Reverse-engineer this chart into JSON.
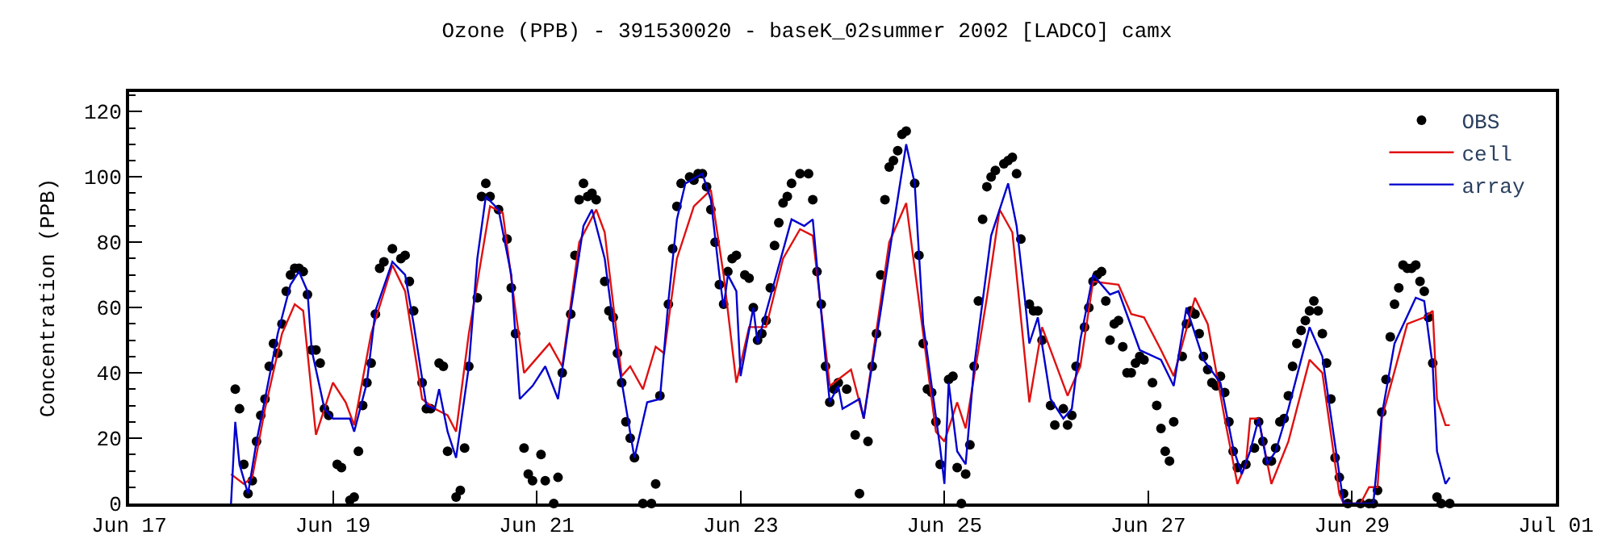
{
  "chart_data": {
    "type": "line",
    "title": "Ozone (PPB) - 391530020 - baseK_02summer 2002 [LADCO] camx",
    "ylabel": "Concentration (PPB)",
    "xlim": [
      "2002-06-17",
      "2002-07-01"
    ],
    "ylim": [
      0,
      126
    ],
    "xticks": [
      {
        "value": "2002-06-17",
        "label": "Jun 17"
      },
      {
        "value": "2002-06-19",
        "label": "Jun 19"
      },
      {
        "value": "2002-06-21",
        "label": "Jun 21"
      },
      {
        "value": "2002-06-23",
        "label": "Jun 23"
      },
      {
        "value": "2002-06-25",
        "label": "Jun 25"
      },
      {
        "value": "2002-06-27",
        "label": "Jun 27"
      },
      {
        "value": "2002-06-29",
        "label": "Jun 29"
      },
      {
        "value": "2002-07-01",
        "label": "Jul 01"
      }
    ],
    "yticks": [
      0,
      20,
      40,
      60,
      80,
      100,
      120
    ],
    "legend": "top right",
    "series": [
      {
        "name": "OBS",
        "type": "scatter",
        "marker": "circle",
        "color": "#000000",
        "x": [
          "2002-06-18T01:00",
          "2002-06-18T02:00",
          "2002-06-18T03:00",
          "2002-06-18T04:00",
          "2002-06-18T05:00",
          "2002-06-18T06:00",
          "2002-06-18T07:00",
          "2002-06-18T08:00",
          "2002-06-18T09:00",
          "2002-06-18T10:00",
          "2002-06-18T11:00",
          "2002-06-18T12:00",
          "2002-06-18T13:00",
          "2002-06-18T14:00",
          "2002-06-18T15:00",
          "2002-06-18T16:00",
          "2002-06-18T17:00",
          "2002-06-18T18:00",
          "2002-06-18T19:00",
          "2002-06-18T20:00",
          "2002-06-18T21:00",
          "2002-06-18T22:00",
          "2002-06-18T23:00",
          "2002-06-19T01:00",
          "2002-06-19T02:00",
          "2002-06-19T04:00",
          "2002-06-19T05:00",
          "2002-06-19T06:00",
          "2002-06-19T07:00",
          "2002-06-19T08:00",
          "2002-06-19T09:00",
          "2002-06-19T10:00",
          "2002-06-19T11:00",
          "2002-06-19T12:00",
          "2002-06-19T14:00",
          "2002-06-19T16:00",
          "2002-06-19T17:00",
          "2002-06-19T18:00",
          "2002-06-19T19:00",
          "2002-06-19T21:00",
          "2002-06-19T22:00",
          "2002-06-19T23:00",
          "2002-06-20T01:00",
          "2002-06-20T02:00",
          "2002-06-20T03:00",
          "2002-06-20T05:00",
          "2002-06-20T06:00",
          "2002-06-20T07:00",
          "2002-06-20T08:00",
          "2002-06-20T10:00",
          "2002-06-20T11:00",
          "2002-06-20T12:00",
          "2002-06-20T13:00",
          "2002-06-20T15:00",
          "2002-06-20T17:00",
          "2002-06-20T18:00",
          "2002-06-20T19:00",
          "2002-06-20T21:00",
          "2002-06-20T22:00",
          "2002-06-20T23:00",
          "2002-06-21T01:00",
          "2002-06-21T02:00",
          "2002-06-21T04:00",
          "2002-06-21T05:00",
          "2002-06-21T06:00",
          "2002-06-21T08:00",
          "2002-06-21T09:00",
          "2002-06-21T10:00",
          "2002-06-21T11:00",
          "2002-06-21T12:00",
          "2002-06-21T13:00",
          "2002-06-21T14:00",
          "2002-06-21T16:00",
          "2002-06-21T17:00",
          "2002-06-21T18:00",
          "2002-06-21T19:00",
          "2002-06-21T20:00",
          "2002-06-21T21:00",
          "2002-06-21T22:00",
          "2002-06-21T23:00",
          "2002-06-22T01:00",
          "2002-06-22T03:00",
          "2002-06-22T04:00",
          "2002-06-22T05:00",
          "2002-06-22T07:00",
          "2002-06-22T08:00",
          "2002-06-22T09:00",
          "2002-06-22T10:00",
          "2002-06-22T12:00",
          "2002-06-22T13:00",
          "2002-06-22T14:00",
          "2002-06-22T15:00",
          "2002-06-22T16:00",
          "2002-06-22T17:00",
          "2002-06-22T18:00",
          "2002-06-22T19:00",
          "2002-06-22T20:00",
          "2002-06-22T21:00",
          "2002-06-22T22:00",
          "2002-06-22T23:00",
          "2002-06-23T01:00",
          "2002-06-23T02:00",
          "2002-06-23T03:00",
          "2002-06-23T04:00",
          "2002-06-23T05:00",
          "2002-06-23T06:00",
          "2002-06-23T07:00",
          "2002-06-23T08:00",
          "2002-06-23T09:00",
          "2002-06-23T10:00",
          "2002-06-23T11:00",
          "2002-06-23T12:00",
          "2002-06-23T14:00",
          "2002-06-23T16:00",
          "2002-06-23T17:00",
          "2002-06-23T18:00",
          "2002-06-23T19:00",
          "2002-06-23T20:00",
          "2002-06-23T21:00",
          "2002-06-23T22:00",
          "2002-06-23T23:00",
          "2002-06-24T01:00",
          "2002-06-24T03:00",
          "2002-06-24T04:00",
          "2002-06-24T06:00",
          "2002-06-24T07:00",
          "2002-06-24T08:00",
          "2002-06-24T09:00",
          "2002-06-24T10:00",
          "2002-06-24T11:00",
          "2002-06-24T12:00",
          "2002-06-24T13:00",
          "2002-06-24T14:00",
          "2002-06-24T15:00",
          "2002-06-24T17:00",
          "2002-06-24T18:00",
          "2002-06-24T19:00",
          "2002-06-24T20:00",
          "2002-06-24T21:00",
          "2002-06-24T22:00",
          "2002-06-24T23:00",
          "2002-06-25T01:00",
          "2002-06-25T02:00",
          "2002-06-25T03:00",
          "2002-06-25T04:00",
          "2002-06-25T05:00",
          "2002-06-25T06:00",
          "2002-06-25T07:00",
          "2002-06-25T08:00",
          "2002-06-25T09:00",
          "2002-06-25T10:00",
          "2002-06-25T11:00",
          "2002-06-25T12:00",
          "2002-06-25T14:00",
          "2002-06-25T15:00",
          "2002-06-25T16:00",
          "2002-06-25T17:00",
          "2002-06-25T18:00",
          "2002-06-25T20:00",
          "2002-06-25T21:00",
          "2002-06-25T22:00",
          "2002-06-25T23:00",
          "2002-06-26T01:00",
          "2002-06-26T02:00",
          "2002-06-26T04:00",
          "2002-06-26T05:00",
          "2002-06-26T06:00",
          "2002-06-26T07:00",
          "2002-06-26T09:00",
          "2002-06-26T10:00",
          "2002-06-26T11:00",
          "2002-06-26T12:00",
          "2002-06-26T13:00",
          "2002-06-26T14:00",
          "2002-06-26T15:00",
          "2002-06-26T16:00",
          "2002-06-26T17:00",
          "2002-06-26T18:00",
          "2002-06-26T19:00",
          "2002-06-26T20:00",
          "2002-06-26T21:00",
          "2002-06-26T22:00",
          "2002-06-26T23:00",
          "2002-06-27T01:00",
          "2002-06-27T02:00",
          "2002-06-27T03:00",
          "2002-06-27T04:00",
          "2002-06-27T05:00",
          "2002-06-27T06:00",
          "2002-06-27T08:00",
          "2002-06-27T09:00",
          "2002-06-27T10:00",
          "2002-06-27T11:00",
          "2002-06-27T12:00",
          "2002-06-27T13:00",
          "2002-06-27T14:00",
          "2002-06-27T15:00",
          "2002-06-27T16:00",
          "2002-06-27T17:00",
          "2002-06-27T18:00",
          "2002-06-27T19:00",
          "2002-06-27T20:00",
          "2002-06-27T21:00",
          "2002-06-27T23:00",
          "2002-06-28T01:00",
          "2002-06-28T02:00",
          "2002-06-28T03:00",
          "2002-06-28T04:00",
          "2002-06-28T05:00",
          "2002-06-28T06:00",
          "2002-06-28T07:00",
          "2002-06-28T08:00",
          "2002-06-28T09:00",
          "2002-06-28T10:00",
          "2002-06-28T11:00",
          "2002-06-28T12:00",
          "2002-06-28T13:00",
          "2002-06-28T14:00",
          "2002-06-28T15:00",
          "2002-06-28T16:00",
          "2002-06-28T17:00",
          "2002-06-28T18:00",
          "2002-06-28T19:00",
          "2002-06-28T20:00",
          "2002-06-28T21:00",
          "2002-06-28T22:00",
          "2002-06-28T23:00",
          "2002-06-29T02:00",
          "2002-06-29T04:00",
          "2002-06-29T05:00",
          "2002-06-29T06:00",
          "2002-06-29T07:00",
          "2002-06-29T08:00",
          "2002-06-29T09:00",
          "2002-06-29T10:00",
          "2002-06-29T11:00",
          "2002-06-29T12:00",
          "2002-06-29T13:00",
          "2002-06-29T14:00",
          "2002-06-29T15:00",
          "2002-06-29T16:00",
          "2002-06-29T17:00",
          "2002-06-29T18:00",
          "2002-06-29T19:00",
          "2002-06-29T20:00",
          "2002-06-29T21:00",
          "2002-06-29T23:00"
        ],
        "values": [
          35,
          29,
          12,
          3,
          7,
          19,
          27,
          32,
          42,
          49,
          46,
          55,
          65,
          70,
          72,
          72,
          71,
          64,
          47,
          47,
          43,
          29,
          27,
          12,
          11,
          1,
          2,
          16,
          30,
          37,
          43,
          58,
          72,
          74,
          78,
          75,
          76,
          68,
          59,
          37,
          29,
          29,
          43,
          42,
          16,
          2,
          4,
          17,
          42,
          63,
          94,
          98,
          94,
          90,
          81,
          66,
          52,
          17,
          9,
          7,
          15,
          7,
          0,
          8,
          40,
          58,
          76,
          93,
          98,
          94,
          95,
          93,
          68,
          59,
          57,
          46,
          37,
          25,
          20,
          14,
          0,
          0,
          6,
          33,
          61,
          78,
          91,
          98,
          100,
          99,
          101,
          101,
          97,
          90,
          80,
          67,
          61,
          71,
          75,
          76,
          70,
          69,
          60,
          50,
          52,
          56,
          66,
          79,
          86,
          92,
          94,
          98,
          101,
          101,
          93,
          71,
          61,
          42,
          31,
          35,
          37,
          35,
          21,
          3,
          19,
          42,
          52,
          70,
          93,
          103,
          105,
          108,
          113,
          114,
          98,
          76,
          49,
          35,
          34,
          25,
          12,
          38,
          39,
          11,
          0,
          9,
          18,
          42,
          62,
          87,
          97,
          100,
          102,
          104,
          105,
          106,
          101,
          81,
          61,
          59,
          59,
          50,
          30,
          24,
          29,
          24,
          27,
          42,
          54,
          60,
          68,
          70,
          71,
          62,
          50,
          55,
          56,
          48,
          40,
          40,
          43,
          45,
          44,
          37,
          30,
          23,
          16,
          13,
          25,
          45,
          55,
          59,
          58,
          52,
          45,
          41,
          37,
          36,
          39,
          34,
          25,
          16,
          11,
          12,
          17,
          25,
          19,
          13,
          13,
          17,
          25,
          26,
          33,
          42,
          49,
          53,
          56,
          59,
          62,
          59,
          52,
          43,
          32,
          14,
          8,
          3,
          0,
          0,
          0,
          0,
          4,
          28,
          38,
          51,
          61,
          66,
          73,
          72,
          72,
          73,
          68,
          65,
          57,
          43,
          2,
          0,
          0
        ]
      },
      {
        "name": "cell",
        "color": "#e01010",
        "line_style": "solid",
        "x": [
          "2002-06-18T00:00",
          "2002-06-18T03:00",
          "2002-06-18T05:00",
          "2002-06-18T08:00",
          "2002-06-18T12:00",
          "2002-06-18T15:00",
          "2002-06-18T17:00",
          "2002-06-18T20:00",
          "2002-06-19T00:00",
          "2002-06-19T03:00",
          "2002-06-19T05:00",
          "2002-06-19T09:00",
          "2002-06-19T14:00",
          "2002-06-19T17:00",
          "2002-06-19T21:00",
          "2002-06-20T00:00",
          "2002-06-20T03:00",
          "2002-06-20T05:00",
          "2002-06-20T08:00",
          "2002-06-20T13:00",
          "2002-06-20T16:00",
          "2002-06-20T19:00",
          "2002-06-20T21:00",
          "2002-06-21T03:00",
          "2002-06-21T06:00",
          "2002-06-21T10:00",
          "2002-06-21T14:00",
          "2002-06-21T16:00",
          "2002-06-21T20:00",
          "2002-06-21T22:00",
          "2002-06-22T01:00",
          "2002-06-22T04:00",
          "2002-06-22T06:00",
          "2002-06-22T09:00",
          "2002-06-22T13:00",
          "2002-06-22T17:00",
          "2002-06-22T20:00",
          "2002-06-22T23:00",
          "2002-06-23T02:00",
          "2002-06-23T06:00",
          "2002-06-23T10:00",
          "2002-06-23T14:00",
          "2002-06-23T17:00",
          "2002-06-23T21:00",
          "2002-06-24T02:00",
          "2002-06-24T05:00",
          "2002-06-24T11:00",
          "2002-06-24T15:00",
          "2002-06-24T19:00",
          "2002-06-24T22:00",
          "2002-06-25T00:00",
          "2002-06-25T03:00",
          "2002-06-25T05:00",
          "2002-06-25T10:00",
          "2002-06-25T13:00",
          "2002-06-25T16:00",
          "2002-06-25T20:00",
          "2002-06-25T23:00",
          "2002-06-26T05:00",
          "2002-06-26T08:00",
          "2002-06-26T11:00",
          "2002-06-26T17:00",
          "2002-06-26T20:00",
          "2002-06-26T23:00",
          "2002-06-27T03:00",
          "2002-06-27T06:00",
          "2002-06-27T11:00",
          "2002-06-27T14:00",
          "2002-06-27T18:00",
          "2002-06-27T21:00",
          "2002-06-27T23:00",
          "2002-06-28T00:00",
          "2002-06-28T02:00",
          "2002-06-28T05:00",
          "2002-06-28T09:00",
          "2002-06-28T14:00",
          "2002-06-28T17:00",
          "2002-06-28T21:00",
          "2002-06-28T22:00",
          "2002-06-29T02:00",
          "2002-06-29T04:00",
          "2002-06-29T06:00",
          "2002-06-29T07:00",
          "2002-06-29T13:00",
          "2002-06-29T17:00",
          "2002-06-29T19:00",
          "2002-06-29T20:00",
          "2002-06-29T22:00",
          "2002-06-29T23:00"
        ],
        "values": [
          9,
          6,
          8,
          29,
          52,
          61,
          59,
          21,
          37,
          31,
          24,
          52,
          73,
          65,
          32,
          29,
          27,
          22,
          52,
          91,
          89,
          59,
          40,
          49,
          42,
          80,
          90,
          83,
          39,
          42,
          35,
          48,
          46,
          75,
          91,
          96,
          70,
          37,
          54,
          54,
          75,
          84,
          82,
          36,
          41,
          26,
          80,
          92,
          52,
          22,
          19,
          31,
          23,
          63,
          90,
          83,
          31,
          54,
          33,
          42,
          68,
          67,
          58,
          57,
          47,
          39,
          63,
          55,
          26,
          6,
          12,
          26,
          26,
          6,
          19,
          44,
          40,
          3,
          0,
          0,
          5,
          5,
          26,
          55,
          57,
          59,
          32,
          24,
          24
        ]
      },
      {
        "name": "array",
        "color": "#0000cc",
        "line_style": "solid",
        "x": [
          "2002-06-18T00:00",
          "2002-06-18T01:00",
          "2002-06-18T02:00",
          "2002-06-18T04:00",
          "2002-06-18T06:00",
          "2002-06-18T08:00",
          "2002-06-18T11:00",
          "2002-06-18T14:00",
          "2002-06-18T16:00",
          "2002-06-18T18:00",
          "2002-06-18T19:00",
          "2002-06-18T22:00",
          "2002-06-19T00:00",
          "2002-06-19T04:00",
          "2002-06-19T05:00",
          "2002-06-19T08:00",
          "2002-06-19T10:00",
          "2002-06-19T14:00",
          "2002-06-19T17:00",
          "2002-06-19T19:00",
          "2002-06-19T22:00",
          "2002-06-20T00:00",
          "2002-06-20T01:00",
          "2002-06-20T03:00",
          "2002-06-20T05:00",
          "2002-06-20T08:00",
          "2002-06-20T10:00",
          "2002-06-20T12:00",
          "2002-06-20T15:00",
          "2002-06-20T18:00",
          "2002-06-20T20:00",
          "2002-06-20T23:00",
          "2002-06-21T02:00",
          "2002-06-21T05:00",
          "2002-06-21T08:00",
          "2002-06-21T11:00",
          "2002-06-21T13:00",
          "2002-06-21T16:00",
          "2002-06-21T19:00",
          "2002-06-21T23:00",
          "2002-06-22T02:00",
          "2002-06-22T05:00",
          "2002-06-22T07:00",
          "2002-06-22T09:00",
          "2002-06-22T11:00",
          "2002-06-22T15:00",
          "2002-06-22T17:00",
          "2002-06-22T19:00",
          "2002-06-22T20:00",
          "2002-06-22T21:00",
          "2002-06-22T23:00",
          "2002-06-23T00:00",
          "2002-06-23T03:00",
          "2002-06-23T04:00",
          "2002-06-23T08:00",
          "2002-06-23T12:00",
          "2002-06-23T15:00",
          "2002-06-23T17:00",
          "2002-06-23T20:00",
          "2002-06-23T21:00",
          "2002-06-23T23:00",
          "2002-06-24T00:00",
          "2002-06-24T04:00",
          "2002-06-24T05:00",
          "2002-06-24T09:00",
          "2002-06-24T12:00",
          "2002-06-24T15:00",
          "2002-06-24T17:00",
          "2002-06-24T19:00",
          "2002-06-24T21:00",
          "2002-06-24T23:00",
          "2002-06-25T00:00",
          "2002-06-25T01:00",
          "2002-06-25T03:00",
          "2002-06-25T05:00",
          "2002-06-25T07:00",
          "2002-06-25T11:00",
          "2002-06-25T15:00",
          "2002-06-25T17:00",
          "2002-06-25T19:00",
          "2002-06-25T20:00",
          "2002-06-25T22:00",
          "2002-06-26T01:00",
          "2002-06-26T04:00",
          "2002-06-26T06:00",
          "2002-06-26T08:00",
          "2002-06-26T11:00",
          "2002-06-26T15:00",
          "2002-06-26T17:00",
          "2002-06-26T22:00",
          "2002-06-27T03:00",
          "2002-06-27T06:00",
          "2002-06-27T09:00",
          "2002-06-27T13:00",
          "2002-06-27T17:00",
          "2002-06-27T20:00",
          "2002-06-27T22:00",
          "2002-06-28T00:00",
          "2002-06-28T02:00",
          "2002-06-28T04:00",
          "2002-06-28T06:00",
          "2002-06-28T09:00",
          "2002-06-28T14:00",
          "2002-06-28T17:00",
          "2002-06-28T21:00",
          "2002-06-28T22:00",
          "2002-06-29T05:00",
          "2002-06-29T07:00",
          "2002-06-29T10:00",
          "2002-06-29T15:00",
          "2002-06-29T17:00",
          "2002-06-29T19:00",
          "2002-06-29T20:00",
          "2002-06-29T22:00",
          "2002-06-29T23:00"
        ],
        "values": [
          0,
          25,
          12,
          3,
          19,
          32,
          52,
          67,
          71,
          65,
          47,
          29,
          26,
          26,
          22,
          37,
          59,
          74,
          70,
          55,
          30,
          29,
          35,
          22,
          14,
          42,
          75,
          94,
          90,
          70,
          32,
          36,
          42,
          32,
          59,
          85,
          90,
          75,
          45,
          14,
          31,
          32,
          62,
          87,
          98,
          101,
          93,
          70,
          60,
          70,
          65,
          39,
          60,
          49,
          68,
          87,
          85,
          87,
          44,
          31,
          36,
          29,
          32,
          26,
          59,
          85,
          110,
          98,
          55,
          36,
          17,
          6,
          37,
          16,
          12,
          42,
          82,
          98,
          85,
          62,
          49,
          57,
          32,
          26,
          29,
          50,
          70,
          64,
          65,
          47,
          44,
          36,
          60,
          44,
          37,
          17,
          9,
          16,
          26,
          12,
          16,
          29,
          54,
          45,
          9,
          0,
          0,
          27,
          49,
          63,
          62,
          42,
          16,
          6,
          8
        ]
      }
    ]
  }
}
